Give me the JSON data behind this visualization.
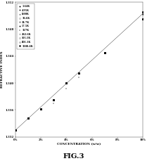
{
  "title": "FIG.3",
  "xlabel": "CONCENTRATION (w/w)",
  "ylabel": "REFRACTIVE INDEX",
  "xlim": [
    0,
    10
  ],
  "ylim": [
    1.332,
    1.352
  ],
  "xtick_values": [
    0,
    2,
    4,
    6,
    8,
    10
  ],
  "xtick_labels": [
    "0%",
    "2%",
    "4%",
    "6%",
    "8%",
    "10%"
  ],
  "ytick_values": [
    1.332,
    1.336,
    1.34,
    1.344,
    1.348,
    1.352
  ],
  "background_color": "#ffffff",
  "line_color": "#000000",
  "series": [
    {
      "label": "1.64K",
      "marker": "D",
      "fillstyle": "full",
      "markersize": 14,
      "use_plus": false,
      "x": [
        0,
        1,
        2,
        3,
        4,
        5,
        7,
        10
      ],
      "y": [
        1.333,
        1.3348,
        1.3362,
        1.3375,
        1.34,
        1.3415,
        1.3445,
        1.3495
      ]
    },
    {
      "label": "4.95K",
      "marker": "s",
      "fillstyle": "full",
      "markersize": 13,
      "use_plus": false,
      "x": [
        0,
        1,
        2,
        3,
        4,
        5,
        7,
        10
      ],
      "y": [
        1.333,
        1.3348,
        1.3362,
        1.3375,
        1.34,
        1.3415,
        1.3445,
        1.3495
      ]
    },
    {
      "label": "8.00K",
      "marker": "^",
      "fillstyle": "full",
      "markersize": 14,
      "use_plus": false,
      "x": [
        0,
        1,
        2,
        3,
        4,
        5,
        7,
        10
      ],
      "y": [
        1.333,
        1.3348,
        1.3362,
        1.3375,
        1.34,
        1.3415,
        1.3445,
        1.3495
      ]
    },
    {
      "label": "16.6K",
      "marker": "s",
      "fillstyle": "none",
      "markersize": 13,
      "use_plus": false,
      "x": [
        0,
        1,
        2,
        3,
        4,
        5,
        7,
        10
      ],
      "y": [
        1.333,
        1.3348,
        1.3362,
        1.3375,
        1.34,
        1.3415,
        1.3445,
        1.3495
      ]
    },
    {
      "label": "34.7K",
      "marker": "*",
      "fillstyle": "none",
      "markersize": 20,
      "use_plus": false,
      "x": [
        0,
        1,
        2,
        3,
        4,
        5,
        7,
        10
      ],
      "y": [
        1.333,
        1.3348,
        1.3362,
        1.3375,
        1.34,
        1.3415,
        1.3445,
        1.3495
      ]
    },
    {
      "label": "57.5K",
      "marker": "o",
      "fillstyle": "full",
      "markersize": 15,
      "use_plus": false,
      "x": [
        0,
        1,
        2,
        3,
        4,
        5,
        7,
        10
      ],
      "y": [
        1.333,
        1.3348,
        1.3362,
        1.3375,
        1.34,
        1.3415,
        1.3445,
        1.3502
      ]
    },
    {
      "label": "127K",
      "marker": "+",
      "fillstyle": "full",
      "markersize": 16,
      "use_plus": true,
      "x": [
        1,
        2,
        3,
        4,
        5,
        7,
        10
      ],
      "y": [
        1.3348,
        1.3362,
        1.337,
        1.3392,
        1.3408,
        1.3445,
        1.3495
      ]
    },
    {
      "label": "262.6K",
      "marker": "^",
      "fillstyle": "none",
      "markersize": 14,
      "use_plus": false,
      "x": [
        0,
        1,
        2,
        3,
        4,
        5,
        7,
        10
      ],
      "y": [
        1.333,
        1.3348,
        1.3362,
        1.3375,
        1.34,
        1.3415,
        1.3445,
        1.3495
      ]
    },
    {
      "label": "505.1K",
      "marker": "o",
      "fillstyle": "none",
      "markersize": 16,
      "use_plus": false,
      "x": [
        0,
        1,
        2,
        3,
        4,
        5,
        7,
        10
      ],
      "y": [
        1.333,
        1.3348,
        1.3362,
        1.3375,
        1.34,
        1.3415,
        1.3445,
        1.3505
      ]
    },
    {
      "label": "801.1K",
      "marker": "D",
      "fillstyle": "none",
      "markersize": 14,
      "use_plus": false,
      "x": [
        0,
        1,
        2,
        3,
        4,
        5,
        7,
        10
      ],
      "y": [
        1.333,
        1.3348,
        1.3362,
        1.3375,
        1.34,
        1.3415,
        1.3445,
        1.3495
      ]
    },
    {
      "label": "1188.4K",
      "marker": "o",
      "fillstyle": "full",
      "markersize": 20,
      "use_plus": false,
      "x": [
        0,
        1,
        2,
        3,
        4,
        5,
        7,
        10
      ],
      "y": [
        1.333,
        1.3348,
        1.3362,
        1.3375,
        1.34,
        1.3415,
        1.3445,
        1.3505
      ]
    }
  ],
  "fit_x": [
    0,
    10
  ],
  "fit_y": [
    1.333,
    1.3503
  ],
  "tick_fontsize": 28,
  "label_fontsize": 32,
  "legend_fontsize": 24,
  "title_fontsize": 72
}
